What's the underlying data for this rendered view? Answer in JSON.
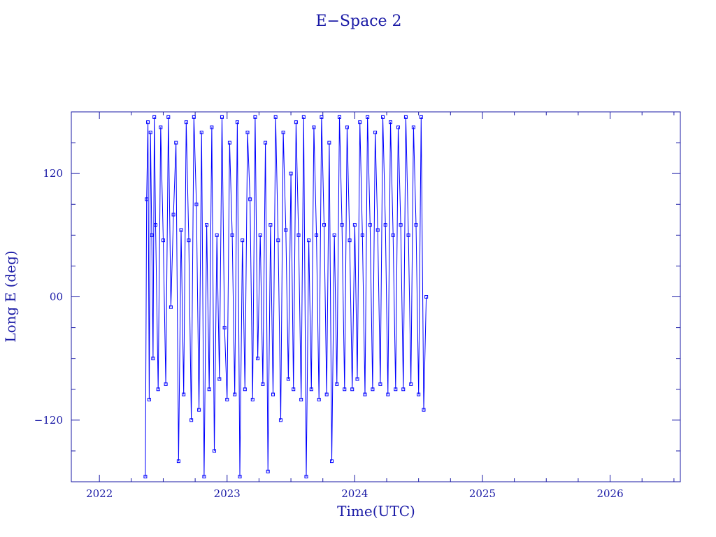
{
  "chart_data": {
    "type": "line",
    "title": "E−Space 2",
    "xlabel": "Time(UTC)",
    "ylabel": "Long E (deg)",
    "xlim": [
      2021.78,
      2026.55
    ],
    "ylim": [
      -180,
      180
    ],
    "x_ticks": [
      2022,
      2023,
      2024,
      2025,
      2026
    ],
    "x_tick_labels": [
      "2022",
      "2023",
      "2024",
      "2025",
      "2026"
    ],
    "y_ticks": [
      -120,
      0,
      120
    ],
    "y_tick_labels": [
      "−120",
      "00",
      "120"
    ],
    "grid": false,
    "legend": "none",
    "colors": {
      "series": "#0000ff",
      "axes": "#1a1aa6"
    },
    "series": [
      {
        "x": [
          2022.36,
          2022.37,
          2022.38,
          2022.39,
          2022.4,
          2022.41,
          2022.42,
          2022.43,
          2022.44,
          2022.46,
          2022.48,
          2022.5,
          2022.52,
          2022.54,
          2022.56,
          2022.58,
          2022.6,
          2022.62,
          2022.64,
          2022.66,
          2022.68,
          2022.7,
          2022.72,
          2022.74,
          2022.76,
          2022.78,
          2022.8,
          2022.82,
          2022.84,
          2022.86,
          2022.88,
          2022.9,
          2022.92,
          2022.94,
          2022.96,
          2022.98,
          2023.0,
          2023.02,
          2023.04,
          2023.06,
          2023.08,
          2023.1,
          2023.12,
          2023.14,
          2023.16,
          2023.18,
          2023.2,
          2023.22,
          2023.24,
          2023.26,
          2023.28,
          2023.3,
          2023.32,
          2023.34,
          2023.36,
          2023.38,
          2023.4,
          2023.42,
          2023.44,
          2023.46,
          2023.48,
          2023.5,
          2023.52,
          2023.54,
          2023.56,
          2023.58,
          2023.6,
          2023.62,
          2023.64,
          2023.66,
          2023.68,
          2023.7,
          2023.72,
          2023.74,
          2023.76,
          2023.78,
          2023.8,
          2023.82,
          2023.84,
          2023.86,
          2023.88,
          2023.9,
          2023.92,
          2023.94,
          2023.96,
          2023.98,
          2024.0,
          2024.02,
          2024.04,
          2024.06,
          2024.08,
          2024.1,
          2024.12,
          2024.14,
          2024.16,
          2024.18,
          2024.2,
          2024.22,
          2024.24,
          2024.26,
          2024.28,
          2024.3,
          2024.32,
          2024.34,
          2024.36,
          2024.38,
          2024.4,
          2024.42,
          2024.44,
          2024.46,
          2024.48,
          2024.5,
          2024.52,
          2024.54,
          2024.56
        ],
        "y": [
          -175,
          95,
          170,
          -100,
          160,
          60,
          -60,
          175,
          70,
          -90,
          165,
          55,
          -85,
          175,
          -10,
          80,
          150,
          -160,
          65,
          -95,
          170,
          55,
          -120,
          175,
          90,
          -110,
          160,
          -175,
          70,
          -90,
          165,
          -150,
          60,
          -80,
          175,
          -30,
          -100,
          150,
          60,
          -95,
          170,
          -175,
          55,
          -90,
          160,
          95,
          -100,
          175,
          -60,
          60,
          -85,
          150,
          -170,
          70,
          -95,
          175,
          55,
          -120,
          160,
          65,
          -80,
          120,
          -90,
          170,
          60,
          -100,
          175,
          -175,
          55,
          -90,
          165,
          60,
          -100,
          175,
          70,
          -95,
          150,
          -160,
          60,
          -85,
          175,
          70,
          -90,
          165,
          55,
          -90,
          70,
          -80,
          170,
          60,
          -95,
          175,
          70,
          -90,
          160,
          65,
          -85,
          175,
          70,
          -95,
          170,
          60,
          -90,
          165,
          70,
          -90,
          175,
          60,
          -85,
          165,
          70,
          -95,
          175,
          -110,
          0
        ]
      }
    ]
  }
}
